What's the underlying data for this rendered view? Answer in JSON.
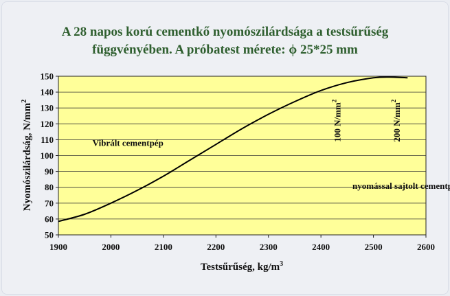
{
  "chart_data": {
    "type": "line",
    "title_line1": "A 28 napos korú cementkő nyomószilárdsága a testsűrűség",
    "title_line2_a": "függvényében. A próbatest mérete: ",
    "title_line2_phi": "ϕ",
    "title_line2_b": " 25*25 mm",
    "xlabel": "Testsűrűség, kg/m",
    "xlabel_sup": "3",
    "ylabel": "Nyomószilárdság, N/mm",
    "ylabel_sup": "2",
    "xlim": [
      1900,
      2600
    ],
    "ylim": [
      50,
      150
    ],
    "xticks": [
      "1900",
      "2000",
      "2100",
      "2200",
      "2300",
      "2400",
      "2500",
      "2600"
    ],
    "yticks": [
      "50",
      "60",
      "70",
      "80",
      "90",
      "100",
      "110",
      "120",
      "130",
      "140",
      "150"
    ],
    "grid": {
      "horizontal": true,
      "vertical": false
    },
    "plot_background": "#ffff99",
    "line_color": "#000000",
    "series": [
      {
        "x": [
          1900,
          1950,
          2000,
          2050,
          2100,
          2150,
          2200,
          2250,
          2300,
          2350,
          2400,
          2450,
          2500,
          2530,
          2565
        ],
        "y": [
          58.5,
          63,
          70,
          78,
          87,
          97,
          107,
          117,
          126,
          134,
          141,
          146,
          149,
          149.5,
          149
        ]
      }
    ],
    "annotations": [
      {
        "text": "Vibrált cementpép",
        "x": 1965,
        "y": 106,
        "rotate": 0
      },
      {
        "text": "nyomással sajtolt cementpép",
        "x": 2460,
        "y": 79,
        "rotate": 0
      },
      {
        "text": "100 N/mm",
        "sup": "2",
        "x": 2437,
        "y": 122,
        "rotate": -90
      },
      {
        "text": "200 N/mm",
        "sup": "2",
        "x": 2550,
        "y": 122,
        "rotate": -90
      }
    ]
  }
}
